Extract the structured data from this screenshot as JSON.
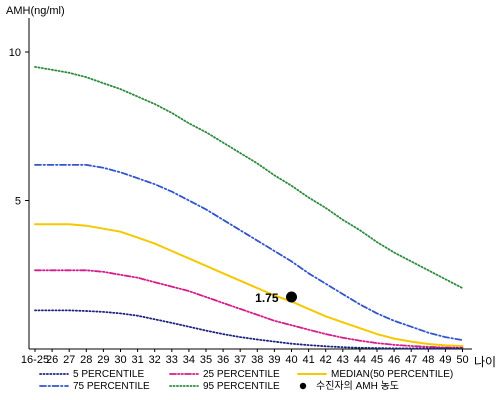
{
  "chart_data": {
    "type": "line",
    "ylabel": "AMH(ng/ml)",
    "xlabel": "나이",
    "x_tick_labels": [
      "16-25",
      "26",
      "27",
      "28",
      "29",
      "30",
      "31",
      "32",
      "33",
      "34",
      "35",
      "36",
      "37",
      "38",
      "39",
      "40",
      "41",
      "42",
      "43",
      "44",
      "45",
      "46",
      "47",
      "48",
      "49",
      "50"
    ],
    "x_values": [
      25,
      26,
      27,
      28,
      29,
      30,
      31,
      32,
      33,
      34,
      35,
      36,
      37,
      38,
      39,
      40,
      41,
      42,
      43,
      44,
      45,
      46,
      47,
      48,
      49,
      50
    ],
    "y_ticks": [
      5,
      10
    ],
    "y_tick_labels": [
      "5",
      "10"
    ],
    "ylim": [
      0,
      11
    ],
    "grid": false,
    "series": [
      {
        "name": "95 PERCENTILE",
        "color": "#2e8b3e",
        "dash": "dotted",
        "values": [
          9.5,
          9.4,
          9.3,
          9.15,
          8.95,
          8.75,
          8.5,
          8.25,
          7.95,
          7.6,
          7.3,
          6.95,
          6.6,
          6.25,
          5.85,
          5.5,
          5.1,
          4.75,
          4.35,
          4.0,
          3.6,
          3.25,
          2.95,
          2.65,
          2.35,
          2.05
        ]
      },
      {
        "name": "75 PERCENTILE",
        "color": "#3355cc",
        "dash": "dashdot",
        "values": [
          6.2,
          6.2,
          6.2,
          6.2,
          6.1,
          5.95,
          5.75,
          5.55,
          5.3,
          5.0,
          4.7,
          4.35,
          4.0,
          3.65,
          3.3,
          2.95,
          2.55,
          2.2,
          1.85,
          1.5,
          1.2,
          0.95,
          0.75,
          0.55,
          0.4,
          0.3
        ]
      },
      {
        "name": "MEDIAN(50 PERCENTILE)",
        "color": "#f5c800",
        "dash": "solid",
        "values": [
          4.2,
          4.2,
          4.2,
          4.15,
          4.05,
          3.95,
          3.75,
          3.55,
          3.3,
          3.05,
          2.8,
          2.55,
          2.3,
          2.05,
          1.8,
          1.6,
          1.35,
          1.1,
          0.9,
          0.7,
          0.5,
          0.35,
          0.25,
          0.17,
          0.12,
          0.1
        ]
      },
      {
        "name": "25 PERCENTILE",
        "color": "#d81b8c",
        "dash": "dashdotdot",
        "values": [
          2.65,
          2.65,
          2.65,
          2.65,
          2.6,
          2.5,
          2.4,
          2.25,
          2.1,
          1.95,
          1.75,
          1.55,
          1.35,
          1.15,
          0.95,
          0.8,
          0.65,
          0.5,
          0.38,
          0.28,
          0.2,
          0.14,
          0.1,
          0.07,
          0.05,
          0.04
        ]
      },
      {
        "name": "5 PERCENTILE",
        "color": "#1a237e",
        "dash": "dotted",
        "values": [
          1.3,
          1.3,
          1.3,
          1.28,
          1.25,
          1.2,
          1.12,
          1.0,
          0.88,
          0.75,
          0.62,
          0.5,
          0.4,
          0.32,
          0.25,
          0.18,
          0.13,
          0.09,
          0.06,
          0.04,
          0.03,
          0.02,
          0.02,
          0.02,
          0.02,
          0.02
        ]
      }
    ],
    "marker": {
      "x": 40,
      "y": 1.75,
      "label": "1.75",
      "color": "#000000"
    },
    "legend": {
      "placement": "bottom",
      "items": [
        {
          "label": "5 PERCENTILE",
          "color": "#1a237e",
          "dash": "dotted",
          "kind": "line"
        },
        {
          "label": "25 PERCENTILE",
          "color": "#d81b8c",
          "dash": "dashdotdot",
          "kind": "line"
        },
        {
          "label": "MEDIAN(50 PERCENTILE)",
          "color": "#f5c800",
          "dash": "solid",
          "kind": "line"
        },
        {
          "label": "75 PERCENTILE",
          "color": "#3355cc",
          "dash": "dashdot",
          "kind": "line"
        },
        {
          "label": "95 PERCENTILE",
          "color": "#2e8b3e",
          "dash": "dotted",
          "kind": "line"
        },
        {
          "label": "수진자의 AMH 농도",
          "color": "#000000",
          "dash": "none",
          "kind": "dot"
        }
      ]
    }
  }
}
